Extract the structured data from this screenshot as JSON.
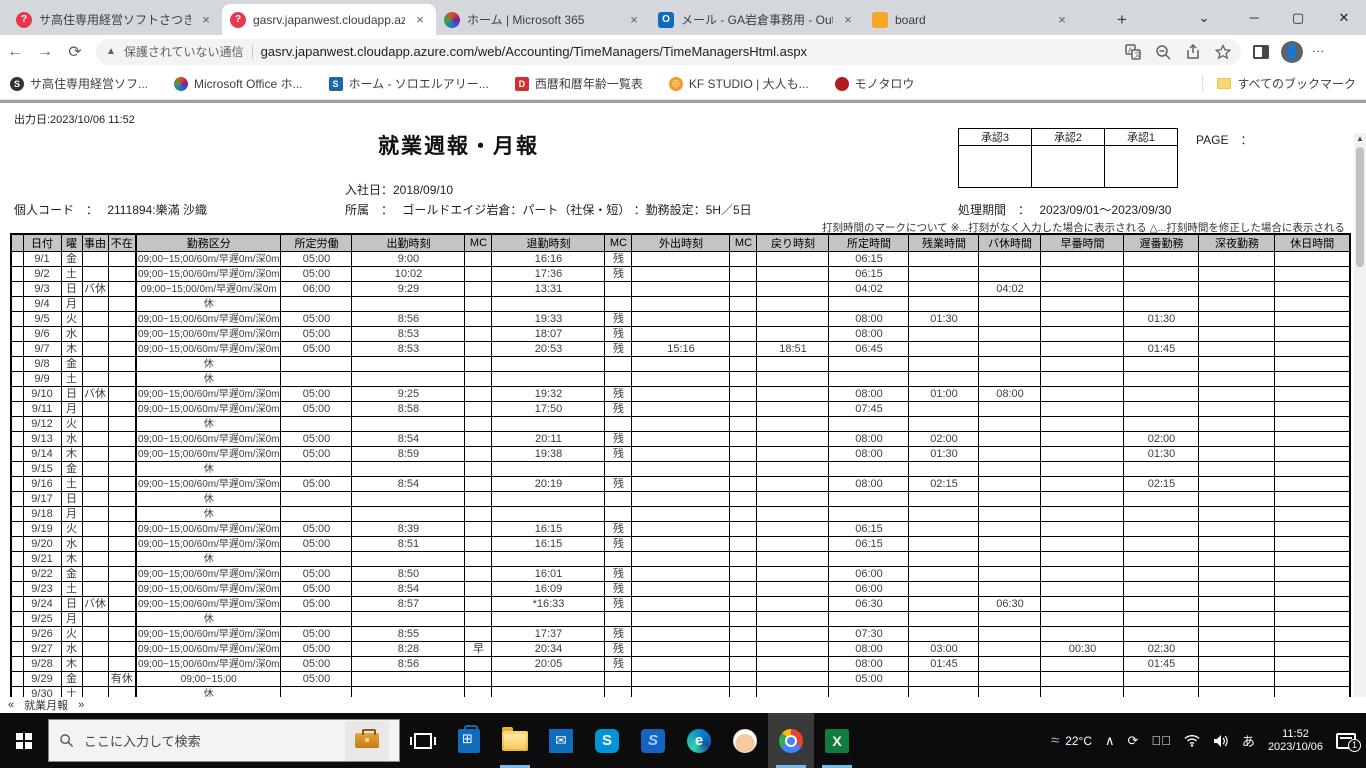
{
  "browser": {
    "tabs": [
      {
        "title": "サ高住専用経営ソフトさつきちゃ",
        "close": "×"
      },
      {
        "title": "gasrv.japanwest.cloudapp.az",
        "close": "×"
      },
      {
        "title": "ホーム | Microsoft 365",
        "close": "×"
      },
      {
        "title": "メール - GA岩倉事務用 - Outl",
        "close": "×"
      },
      {
        "title": "board",
        "close": "×"
      }
    ],
    "new_tab": "+",
    "window_controls": {
      "tab_search": "⌄",
      "minimize": "─",
      "maximize": "▢",
      "close": "✕"
    },
    "nav": {
      "security_label": "保護されていない通信",
      "url": "gasrv.japanwest.cloudapp.azure.com/web/Accounting/TimeManagers/TimeManagersHtml.aspx"
    },
    "bookmarks": [
      {
        "label": "サ高住専用経営ソフ..."
      },
      {
        "label": "Microsoft Office ホ..."
      },
      {
        "label": "ホーム - ソロエルアリー..."
      },
      {
        "label": "西暦和暦年齢一覧表"
      },
      {
        "label": "KF STUDIO | 大人も..."
      },
      {
        "label": "モノタロウ"
      }
    ],
    "all_bookmarks_label": "すべてのブックマーク"
  },
  "report": {
    "output_date": "出力日:2023/10/06 11:52",
    "title": "就業週報・月報",
    "approval_labels": [
      "承認3",
      "承認2",
      "承認1"
    ],
    "page_label": "PAGE　：",
    "hire_line": "入社日：2018/09/10",
    "personal_line": "個人コード　：　 2111894:樂滿 沙織",
    "affiliation_line": "所属　：　 ゴールドエイジ岩倉：パート（社保・短） ：勤務設定：5H／5日",
    "period_line": "処理期間　：　 2023/09/01～2023/09/30",
    "note": "打刻時間のマークについて ※...打刻がなく入力した場合に表示される △...打刻時間を修正した場合に表示される",
    "footer_nav": {
      "prev": "«",
      "label": "就業月報",
      "next": "»"
    }
  },
  "table": {
    "headers": [
      "",
      "日付",
      "曜",
      "事由",
      "不在",
      "勤務区分",
      "所定労働",
      "出勤時刻",
      "MC",
      "退勤時刻",
      "MC",
      "外出時刻",
      "MC",
      "戻り時刻",
      "所定時間",
      "残業時間",
      "バ休時間",
      "早番時間",
      "遅番勤務",
      "深夜勤務",
      "休日時間"
    ],
    "rows": [
      [
        "9/1",
        "金",
        "",
        "",
        "09;00~15;00/60m/早遅0m/深0m",
        "05:00",
        "9:00",
        "",
        "16:16",
        "残",
        "",
        "",
        "",
        "06:15",
        "",
        "",
        "",
        "",
        "",
        ""
      ],
      [
        "9/2",
        "土",
        "",
        "",
        "09;00~15;00/60m/早遅0m/深0m",
        "05:00",
        "10:02",
        "",
        "17:36",
        "残",
        "",
        "",
        "",
        "06:15",
        "",
        "",
        "",
        "",
        "",
        ""
      ],
      [
        "9/3",
        "日",
        "バ休",
        "",
        "09;00~15;00/0m/早遅0m/深0m",
        "06:00",
        "9:29",
        "",
        "13:31",
        "",
        "",
        "",
        "",
        "04:02",
        "",
        "04:02",
        "",
        "",
        "",
        ""
      ],
      [
        "9/4",
        "月",
        "",
        "",
        "休",
        "",
        "",
        "",
        "",
        "",
        "",
        "",
        "",
        "",
        "",
        "",
        "",
        "",
        "",
        ""
      ],
      [
        "9/5",
        "火",
        "",
        "",
        "09;00~15;00/60m/早遅0m/深0m",
        "05:00",
        "8:56",
        "",
        "19:33",
        "残",
        "",
        "",
        "",
        "08:00",
        "01:30",
        "",
        "",
        "01:30",
        "",
        ""
      ],
      [
        "9/6",
        "水",
        "",
        "",
        "09;00~15;00/60m/早遅0m/深0m",
        "05:00",
        "8:53",
        "",
        "18:07",
        "残",
        "",
        "",
        "",
        "08:00",
        "",
        "",
        "",
        "",
        "",
        ""
      ],
      [
        "9/7",
        "木",
        "",
        "",
        "09;00~15;00/60m/早遅0m/深0m",
        "05:00",
        "8:53",
        "",
        "20:53",
        "残",
        "15:16",
        "",
        "18:51",
        "06:45",
        "",
        "",
        "",
        "01:45",
        "",
        ""
      ],
      [
        "9/8",
        "金",
        "",
        "",
        "休",
        "",
        "",
        "",
        "",
        "",
        "",
        "",
        "",
        "",
        "",
        "",
        "",
        "",
        "",
        ""
      ],
      [
        "9/9",
        "土",
        "",
        "",
        "休",
        "",
        "",
        "",
        "",
        "",
        "",
        "",
        "",
        "",
        "",
        "",
        "",
        "",
        "",
        ""
      ],
      [
        "9/10",
        "日",
        "バ休",
        "",
        "09;00~15;00/60m/早遅0m/深0m",
        "05:00",
        "9:25",
        "",
        "19:32",
        "残",
        "",
        "",
        "",
        "08:00",
        "01:00",
        "08:00",
        "",
        "",
        "",
        ""
      ],
      [
        "9/11",
        "月",
        "",
        "",
        "09;00~15;00/60m/早遅0m/深0m",
        "05:00",
        "8:58",
        "",
        "17:50",
        "残",
        "",
        "",
        "",
        "07:45",
        "",
        "",
        "",
        "",
        "",
        ""
      ],
      [
        "9/12",
        "火",
        "",
        "",
        "休",
        "",
        "",
        "",
        "",
        "",
        "",
        "",
        "",
        "",
        "",
        "",
        "",
        "",
        "",
        ""
      ],
      [
        "9/13",
        "水",
        "",
        "",
        "09;00~15;00/60m/早遅0m/深0m",
        "05:00",
        "8:54",
        "",
        "20:11",
        "残",
        "",
        "",
        "",
        "08:00",
        "02:00",
        "",
        "",
        "02:00",
        "",
        ""
      ],
      [
        "9/14",
        "木",
        "",
        "",
        "09;00~15;00/60m/早遅0m/深0m",
        "05:00",
        "8:59",
        "",
        "19:38",
        "残",
        "",
        "",
        "",
        "08:00",
        "01:30",
        "",
        "",
        "01:30",
        "",
        ""
      ],
      [
        "9/15",
        "金",
        "",
        "",
        "休",
        "",
        "",
        "",
        "",
        "",
        "",
        "",
        "",
        "",
        "",
        "",
        "",
        "",
        "",
        ""
      ],
      [
        "9/16",
        "土",
        "",
        "",
        "09;00~15;00/60m/早遅0m/深0m",
        "05:00",
        "8:54",
        "",
        "20:19",
        "残",
        "",
        "",
        "",
        "08:00",
        "02:15",
        "",
        "",
        "02:15",
        "",
        ""
      ],
      [
        "9/17",
        "日",
        "",
        "",
        "休",
        "",
        "",
        "",
        "",
        "",
        "",
        "",
        "",
        "",
        "",
        "",
        "",
        "",
        "",
        ""
      ],
      [
        "9/18",
        "月",
        "",
        "",
        "休",
        "",
        "",
        "",
        "",
        "",
        "",
        "",
        "",
        "",
        "",
        "",
        "",
        "",
        "",
        ""
      ],
      [
        "9/19",
        "火",
        "",
        "",
        "09;00~15;00/60m/早遅0m/深0m",
        "05:00",
        "8:39",
        "",
        "16:15",
        "残",
        "",
        "",
        "",
        "06:15",
        "",
        "",
        "",
        "",
        "",
        ""
      ],
      [
        "9/20",
        "水",
        "",
        "",
        "09;00~15;00/60m/早遅0m/深0m",
        "05:00",
        "8:51",
        "",
        "16:15",
        "残",
        "",
        "",
        "",
        "06:15",
        "",
        "",
        "",
        "",
        "",
        ""
      ],
      [
        "9/21",
        "木",
        "",
        "",
        "休",
        "",
        "",
        "",
        "",
        "",
        "",
        "",
        "",
        "",
        "",
        "",
        "",
        "",
        "",
        ""
      ],
      [
        "9/22",
        "金",
        "",
        "",
        "09;00~15;00/60m/早遅0m/深0m",
        "05:00",
        "8:50",
        "",
        "16:01",
        "残",
        "",
        "",
        "",
        "06:00",
        "",
        "",
        "",
        "",
        "",
        ""
      ],
      [
        "9/23",
        "土",
        "",
        "",
        "09;00~15;00/60m/早遅0m/深0m",
        "05:00",
        "8:54",
        "",
        "16:09",
        "残",
        "",
        "",
        "",
        "06:00",
        "",
        "",
        "",
        "",
        "",
        ""
      ],
      [
        "9/24",
        "日",
        "バ休",
        "",
        "09;00~15;00/60m/早遅0m/深0m",
        "05:00",
        "8:57",
        "",
        "*16:33",
        "残",
        "",
        "",
        "",
        "06:30",
        "",
        "06:30",
        "",
        "",
        "",
        ""
      ],
      [
        "9/25",
        "月",
        "",
        "",
        "休",
        "",
        "",
        "",
        "",
        "",
        "",
        "",
        "",
        "",
        "",
        "",
        "",
        "",
        "",
        ""
      ],
      [
        "9/26",
        "火",
        "",
        "",
        "09;00~15;00/60m/早遅0m/深0m",
        "05:00",
        "8:55",
        "",
        "17:37",
        "残",
        "",
        "",
        "",
        "07:30",
        "",
        "",
        "",
        "",
        "",
        ""
      ],
      [
        "9/27",
        "水",
        "",
        "",
        "09;00~15;00/60m/早遅0m/深0m",
        "05:00",
        "8:28",
        "早",
        "20:34",
        "残",
        "",
        "",
        "",
        "08:00",
        "03:00",
        "",
        "00:30",
        "02:30",
        "",
        ""
      ],
      [
        "9/28",
        "木",
        "",
        "",
        "09;00~15;00/60m/早遅0m/深0m",
        "05:00",
        "8:56",
        "",
        "20:05",
        "残",
        "",
        "",
        "",
        "08:00",
        "01:45",
        "",
        "",
        "01:45",
        "",
        ""
      ],
      [
        "9/29",
        "金",
        "",
        "有休",
        "09;00~15;00",
        "05:00",
        "",
        "",
        "",
        "",
        "",
        "",
        "",
        "05:00",
        "",
        "",
        "",
        "",
        "",
        ""
      ],
      [
        "9/30",
        "土",
        "",
        "",
        "休",
        "",
        "",
        "",
        "",
        "",
        "",
        "",
        "",
        "",
        "",
        "",
        "",
        "",
        "",
        ""
      ]
    ]
  },
  "taskbar": {
    "search_placeholder": "ここに入力して検索",
    "tray": {
      "temperature": "22°C",
      "ime": "あ",
      "time": "11:52",
      "date": "2023/10/06",
      "notification_count": "1"
    }
  }
}
